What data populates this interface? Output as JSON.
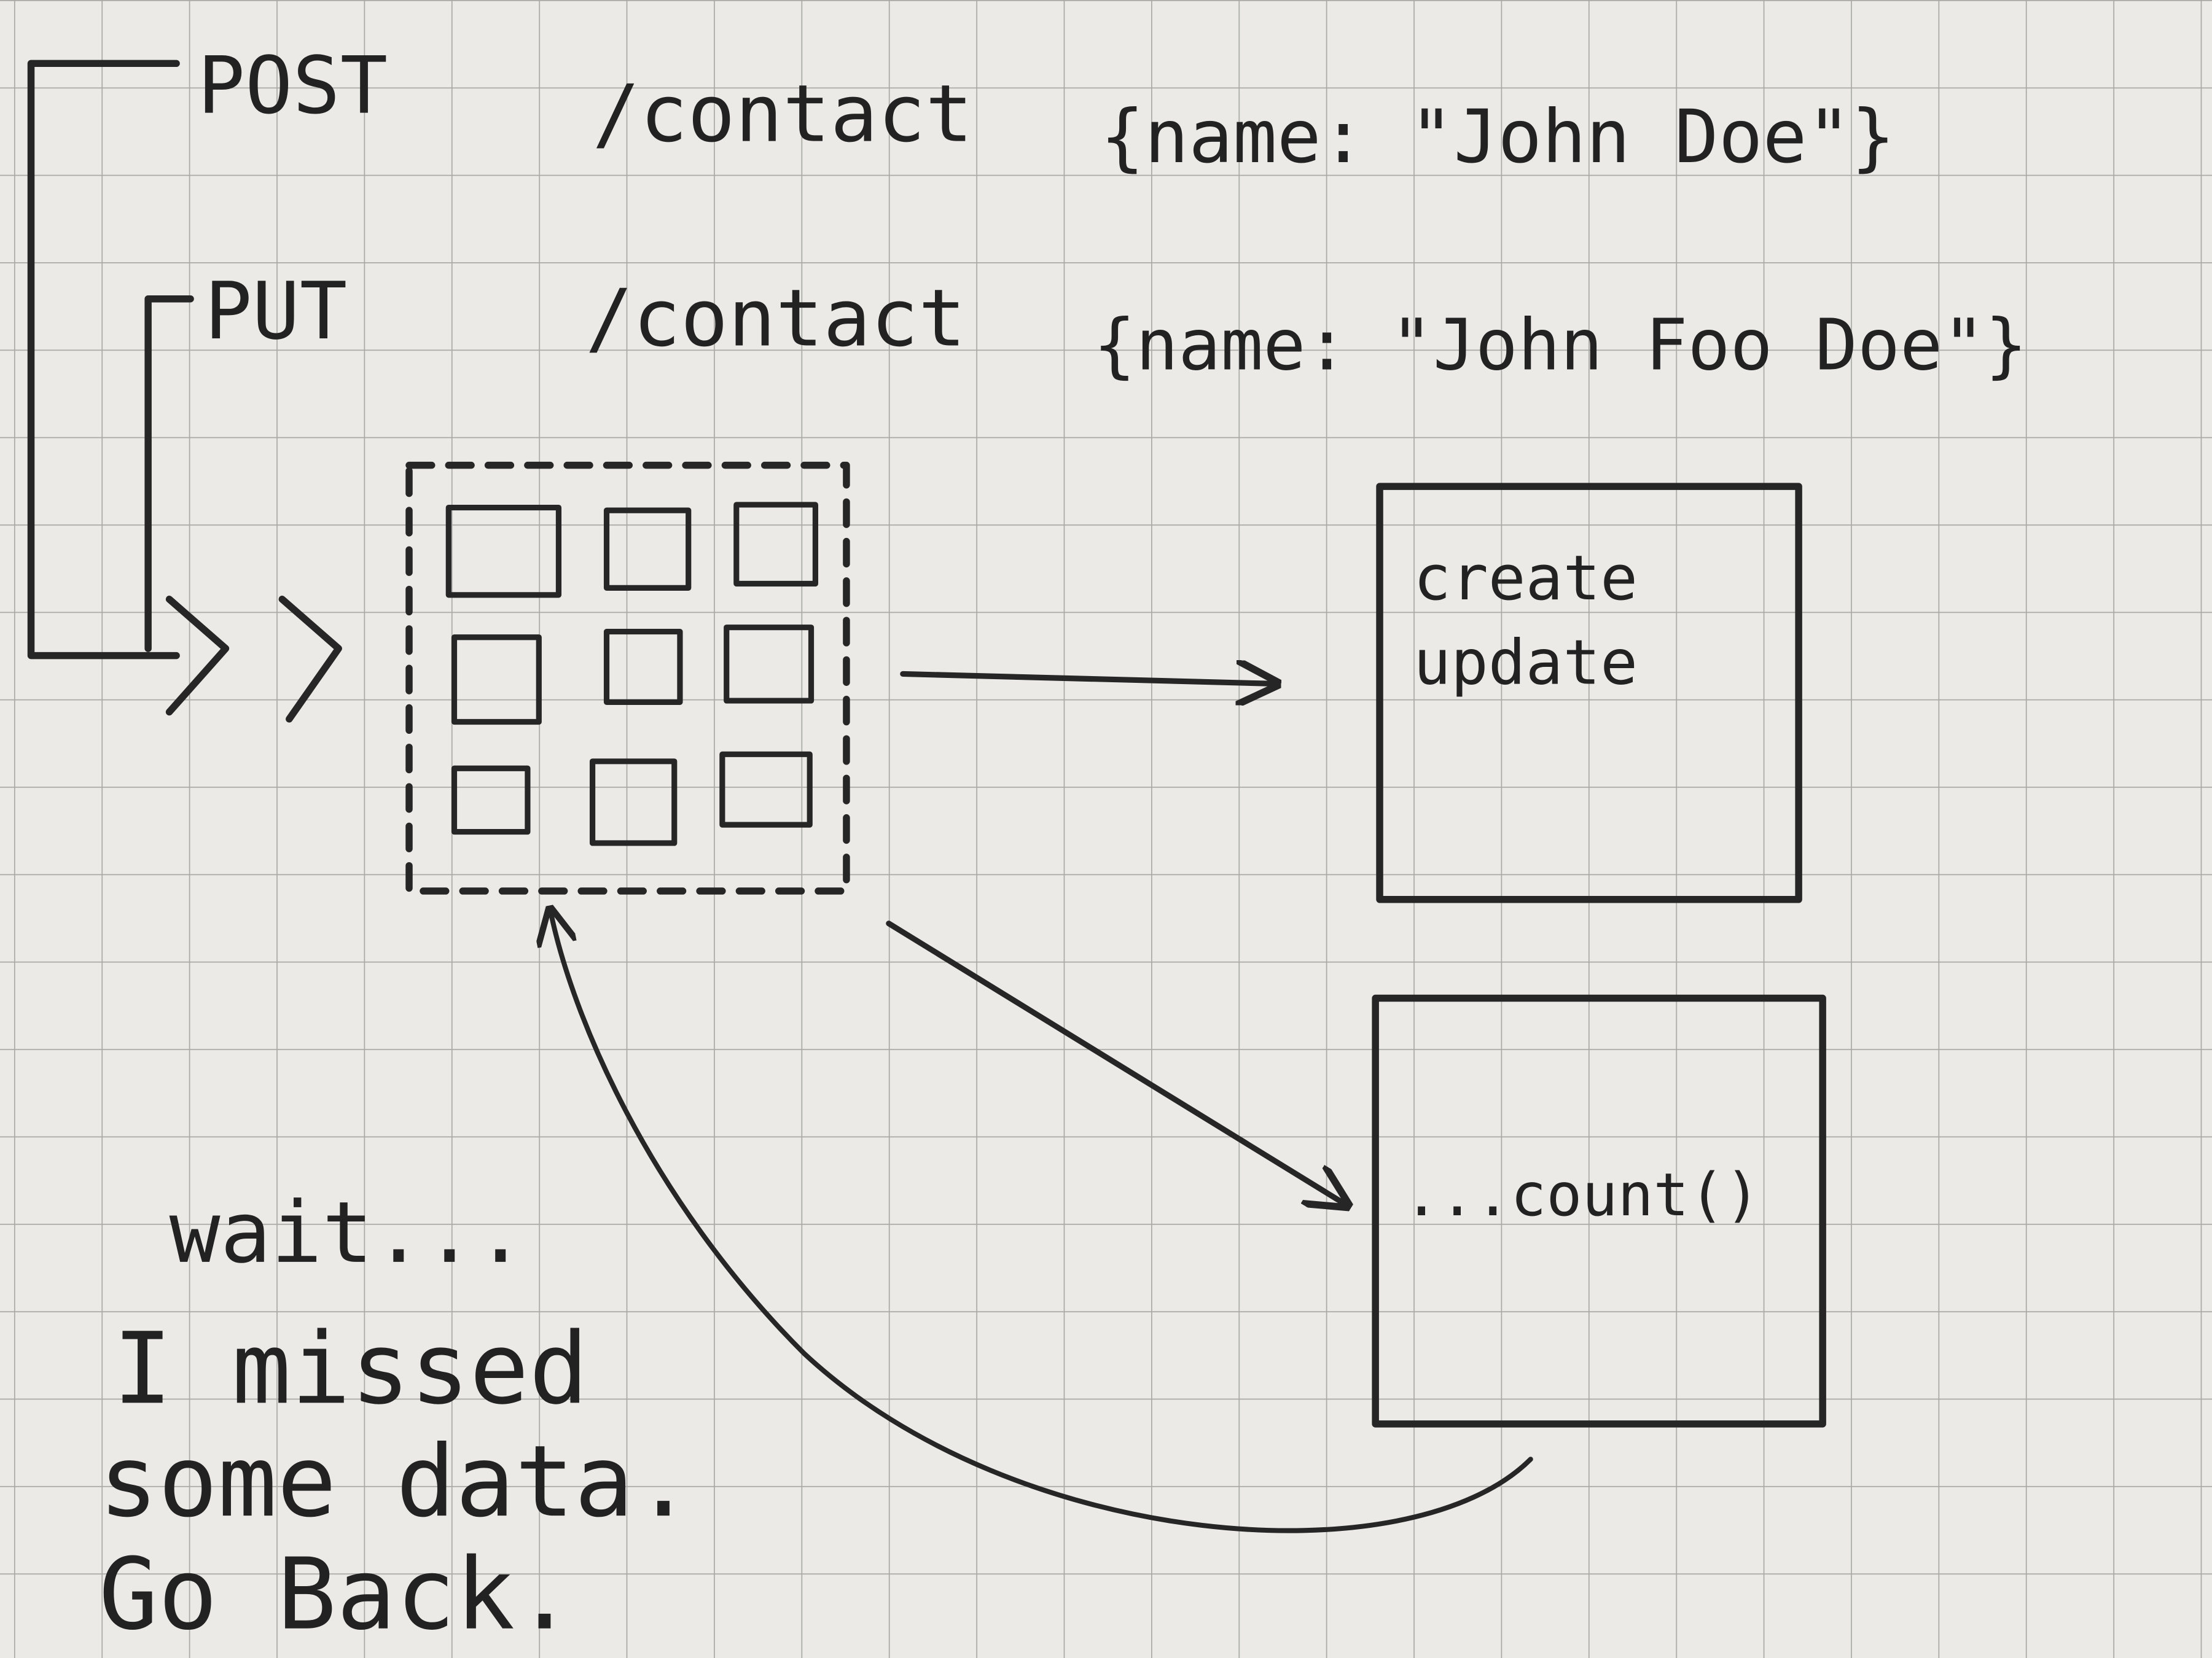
{
  "requests": [
    {
      "method": "POST",
      "path": "/contact",
      "body": "{name: \"John Doe\"}"
    },
    {
      "method": "PUT",
      "path": "/contact",
      "body": "{name: \"John Foo Doe\"}"
    }
  ],
  "nodes": [
    {
      "lines": [
        "create",
        "update"
      ]
    },
    {
      "lines": [
        "...count()"
      ]
    }
  ],
  "note": {
    "lines": [
      "wait...",
      "I missed",
      "some data.",
      "Go Back."
    ]
  }
}
